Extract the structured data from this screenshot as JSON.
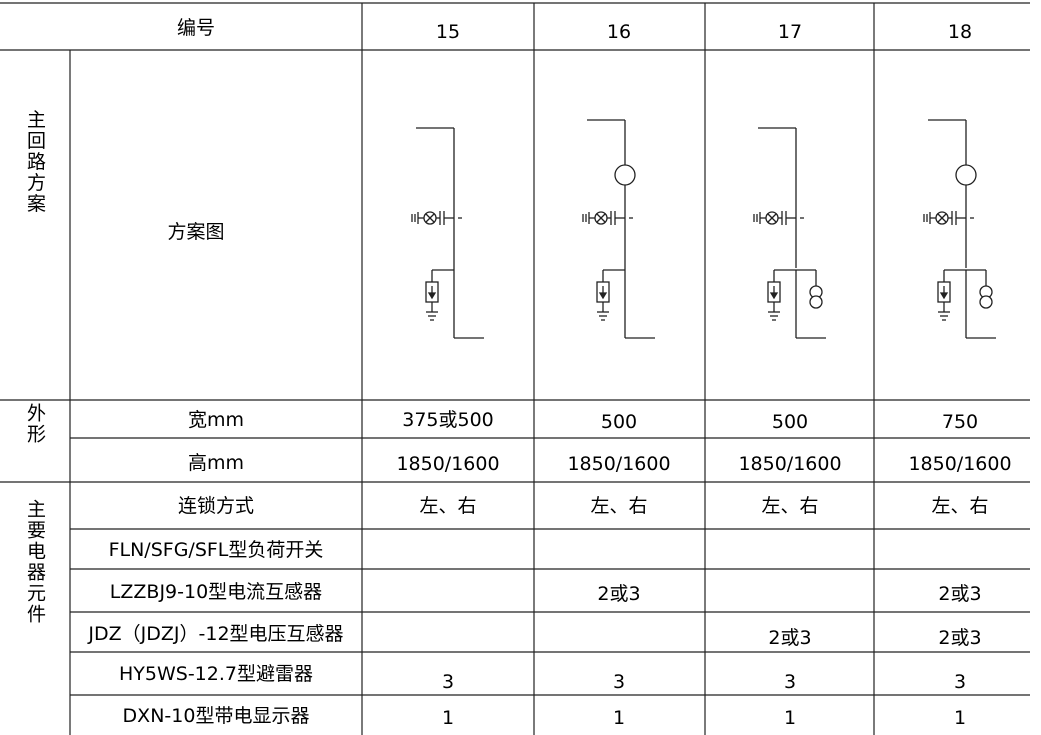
{
  "header": {
    "label": "编号",
    "numbers": [
      "15",
      "16",
      "17",
      "18"
    ]
  },
  "main_circuit": {
    "group_label": "主回路方案",
    "row_label": "方案图",
    "diagram_icon": "single-line-switchgear-diagram",
    "schemes": [
      {
        "number": "15",
        "has_current_transformer": false,
        "has_voltage_transformer": false
      },
      {
        "number": "16",
        "has_current_transformer": true,
        "has_voltage_transformer": false
      },
      {
        "number": "17",
        "has_current_transformer": false,
        "has_voltage_transformer": true
      },
      {
        "number": "18",
        "has_current_transformer": true,
        "has_voltage_transformer": true
      }
    ]
  },
  "outline": {
    "group_label": "外形",
    "width": {
      "label": "宽mm",
      "values": [
        "375或500",
        "500",
        "500",
        "750"
      ]
    },
    "height": {
      "label": "高mm",
      "values": [
        "1850/1600",
        "1850/1600",
        "1850/1600",
        "1850/1600"
      ]
    }
  },
  "components": {
    "group_label": "主要电器元件",
    "rows": [
      {
        "label": "连锁方式",
        "values": [
          "左、右",
          "左、右",
          "左、右",
          "左、右"
        ]
      },
      {
        "label": "FLN/SFG/SFL型负荷开关",
        "values": [
          "",
          "",
          "",
          ""
        ]
      },
      {
        "label": "LZZBJ9-10型电流互感器",
        "values": [
          "",
          "2或3",
          "",
          "2或3"
        ]
      },
      {
        "label": "JDZ（JDZJ）-12型电压互感器",
        "values": [
          "",
          "",
          "2或3",
          "2或3"
        ]
      },
      {
        "label": "HY5WS-12.7型避雷器",
        "values": [
          "3",
          "3",
          "3",
          "3"
        ]
      },
      {
        "label": "DXN-10型带电显示器",
        "values": [
          "1",
          "1",
          "1",
          "1"
        ]
      }
    ]
  }
}
